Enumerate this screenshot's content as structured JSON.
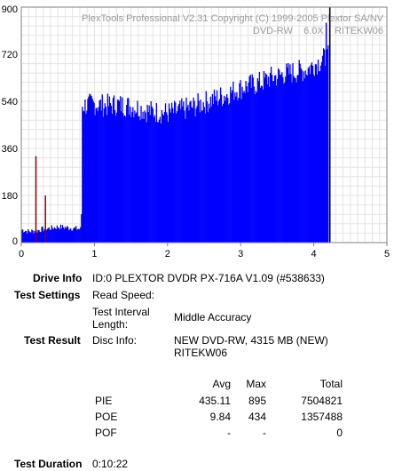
{
  "chart_data": {
    "type": "bar",
    "watermark": [
      "PlexTools Professional V2.31 Copyright (C) 1999-2005 Plextor SA/NV",
      "DVD-RW    6.0X    RITEKW06"
    ],
    "xlim": [
      0,
      5
    ],
    "ylim": [
      0,
      900
    ],
    "x_ticks": [
      "0",
      "1",
      "2",
      "3",
      "4",
      "5"
    ],
    "y_ticks": [
      "0",
      "180",
      "360",
      "540",
      "720",
      "900"
    ],
    "grid": true,
    "fill_color": "#0000ff",
    "spike_color": "#8b0000",
    "marker_color": "#000000",
    "series": [
      {
        "values": [
          [
            0.0,
            50
          ],
          [
            0.1,
            42
          ],
          [
            0.2,
            45
          ],
          [
            0.3,
            52
          ],
          [
            0.4,
            55
          ],
          [
            0.5,
            60
          ],
          [
            0.6,
            58
          ],
          [
            0.7,
            55
          ],
          [
            0.8,
            52
          ],
          [
            0.82,
            52
          ],
          [
            0.83,
            535
          ],
          [
            0.9,
            535
          ],
          [
            1.0,
            540
          ],
          [
            1.1,
            535
          ],
          [
            1.2,
            535
          ],
          [
            1.3,
            538
          ],
          [
            1.4,
            535
          ],
          [
            1.5,
            530
          ],
          [
            1.6,
            525
          ],
          [
            1.7,
            515
          ],
          [
            1.8,
            510
          ],
          [
            1.9,
            508
          ],
          [
            2.0,
            505
          ],
          [
            2.1,
            510
          ],
          [
            2.2,
            518
          ],
          [
            2.3,
            525
          ],
          [
            2.4,
            535
          ],
          [
            2.5,
            545
          ],
          [
            2.6,
            555
          ],
          [
            2.7,
            565
          ],
          [
            2.8,
            575
          ],
          [
            2.9,
            590
          ],
          [
            3.0,
            600
          ],
          [
            3.1,
            610
          ],
          [
            3.2,
            615
          ],
          [
            3.3,
            625
          ],
          [
            3.4,
            640
          ],
          [
            3.5,
            645
          ],
          [
            3.6,
            655
          ],
          [
            3.7,
            660
          ],
          [
            3.8,
            665
          ],
          [
            3.9,
            670
          ],
          [
            4.0,
            690
          ],
          [
            4.1,
            705
          ],
          [
            4.15,
            715
          ],
          [
            4.2,
            720
          ]
        ]
      }
    ],
    "spikes": [
      [
        0.2,
        330
      ],
      [
        0.33,
        180
      ],
      [
        4.17,
        840
      ],
      [
        4.22,
        895
      ]
    ],
    "end_marker_x": 4.22
  },
  "info": {
    "drive_info_label": "Drive Info",
    "drive_info_value": "ID:0 PLEXTOR DVDR PX-716A V1.09 (#538633)",
    "test_settings_label": "Test Settings",
    "read_speed_label": "Read Speed:",
    "interval_label_1": "Test Interval",
    "interval_label_2": "Length:",
    "interval_value": "Middle Accuracy",
    "test_result_label": "Test Result",
    "disc_info_label": "Disc Info:",
    "disc_info_value_1": "NEW DVD-RW, 4315 MB (NEW)",
    "disc_info_value_2": "RITEKW06",
    "test_duration_label": "Test Duration",
    "test_duration_value": "0:10:22"
  },
  "stats": {
    "headers": {
      "avg": "Avg",
      "max": "Max",
      "total": "Total"
    },
    "rows": [
      {
        "name": "PIE",
        "avg": "435.11",
        "max": "895",
        "total": "7504821"
      },
      {
        "name": "POE",
        "avg": "9.84",
        "max": "434",
        "total": "1357488"
      },
      {
        "name": "POF",
        "avg": "-",
        "max": "-",
        "total": "0"
      }
    ]
  }
}
